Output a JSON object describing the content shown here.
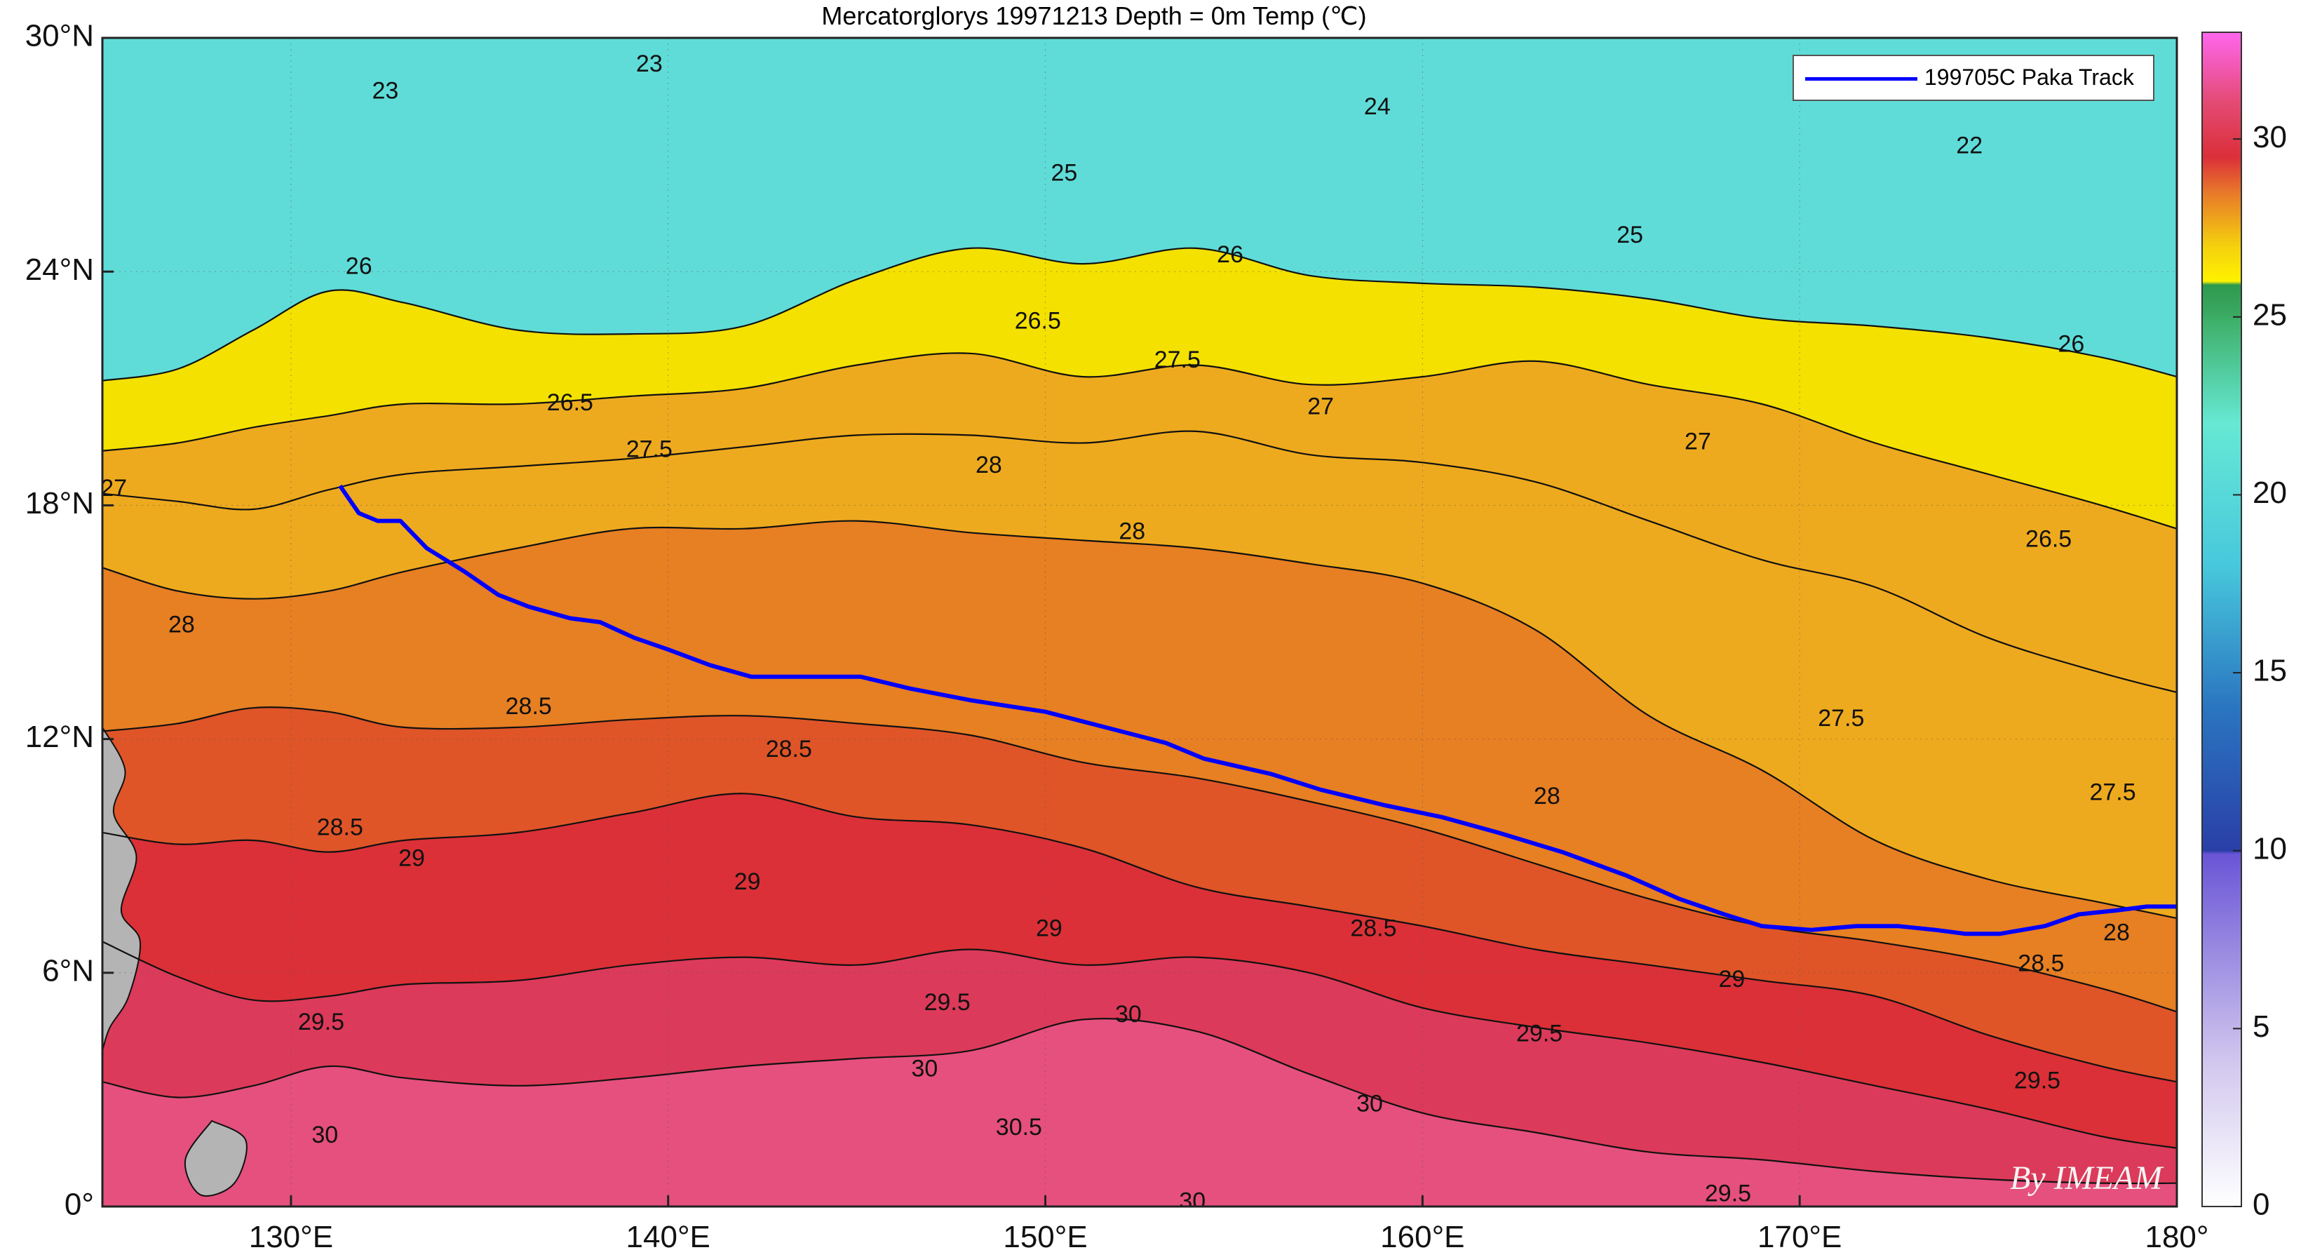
{
  "title": "Mercatorglorys 19971213 Depth = 0m Temp (℃)",
  "map": {
    "lon_range": [
      125,
      180
    ],
    "lat_range": [
      0,
      30
    ],
    "x_ticks": [
      {
        "lon": 130,
        "label": "130°E"
      },
      {
        "lon": 140,
        "label": "140°E"
      },
      {
        "lon": 150,
        "label": "150°E"
      },
      {
        "lon": 160,
        "label": "160°E"
      },
      {
        "lon": 170,
        "label": "170°E"
      },
      {
        "lon": 180,
        "label": "180°"
      }
    ],
    "y_ticks": [
      {
        "lat": 0,
        "label": "0°"
      },
      {
        "lat": 6,
        "label": "6°N"
      },
      {
        "lat": 12,
        "label": "12°N"
      },
      {
        "lat": 18,
        "label": "18°N"
      },
      {
        "lat": 24,
        "label": "24°N"
      },
      {
        "lat": 30,
        "label": "30°N"
      }
    ],
    "grid": true,
    "land_color": "#b4b4b4",
    "temperature_bands": [
      {
        "min": 0,
        "max": 21,
        "color": "#5fdcd8"
      },
      {
        "min": 21,
        "max": 25,
        "color": "#55d3ae"
      },
      {
        "min": 25,
        "max": 26,
        "color": "#3ba866"
      },
      {
        "min": 26,
        "max": 27,
        "color": "#f4e100"
      },
      {
        "min": 27,
        "max": 28,
        "color": "#eeaa1e"
      },
      {
        "min": 28,
        "max": 28.5,
        "color": "#e77f23"
      },
      {
        "min": 28.5,
        "max": 29,
        "color": "#df5528"
      },
      {
        "min": 29,
        "max": 29.5,
        "color": "#db3037"
      },
      {
        "min": 29.5,
        "max": 30,
        "color": "#dc3a5a"
      },
      {
        "min": 30,
        "max": 32,
        "color": "#e5507e"
      }
    ],
    "isotherms": [
      {
        "value": 26,
        "points": [
          [
            125,
            21.2
          ],
          [
            127,
            21.5
          ],
          [
            129,
            22.5
          ],
          [
            131,
            23.5
          ],
          [
            133,
            23.2
          ],
          [
            136,
            22.5
          ],
          [
            139,
            22.4
          ],
          [
            142,
            22.6
          ],
          [
            145,
            23.8
          ],
          [
            148,
            24.6
          ],
          [
            151,
            24.2
          ],
          [
            154,
            24.6
          ],
          [
            157,
            23.9
          ],
          [
            160,
            23.7
          ],
          [
            163,
            23.6
          ],
          [
            166,
            23.3
          ],
          [
            169,
            22.8
          ],
          [
            172,
            22.6
          ],
          [
            175,
            22.3
          ],
          [
            178,
            21.8
          ],
          [
            180,
            21.3
          ]
        ]
      },
      {
        "value": 27,
        "points": [
          [
            125,
            19.4
          ],
          [
            127,
            19.6
          ],
          [
            129,
            20
          ],
          [
            131,
            20.3
          ],
          [
            133,
            20.6
          ],
          [
            136,
            20.6
          ],
          [
            139,
            20.8
          ],
          [
            142,
            21
          ],
          [
            145,
            21.6
          ],
          [
            148,
            21.9
          ],
          [
            151,
            21.3
          ],
          [
            154,
            21.6
          ],
          [
            157,
            21.1
          ],
          [
            160,
            21.3
          ],
          [
            163,
            21.7
          ],
          [
            166,
            21.1
          ],
          [
            169,
            20.6
          ],
          [
            172,
            19.6
          ],
          [
            175,
            18.8
          ],
          [
            178,
            18
          ],
          [
            180,
            17.4
          ]
        ]
      },
      {
        "value": 27.5,
        "points": [
          [
            125,
            18.3
          ],
          [
            127,
            18.1
          ],
          [
            129,
            17.9
          ],
          [
            131,
            18.4
          ],
          [
            133,
            18.8
          ],
          [
            136,
            19
          ],
          [
            139,
            19.2
          ],
          [
            142,
            19.5
          ],
          [
            145,
            19.8
          ],
          [
            148,
            19.8
          ],
          [
            151,
            19.6
          ],
          [
            154,
            19.9
          ],
          [
            157,
            19.3
          ],
          [
            160,
            19.1
          ],
          [
            163,
            18.6
          ],
          [
            166,
            17.6
          ],
          [
            169,
            16.6
          ],
          [
            172,
            15.9
          ],
          [
            175,
            14.6
          ],
          [
            178,
            13.7
          ],
          [
            180,
            13.2
          ]
        ]
      },
      {
        "value": 28,
        "points": [
          [
            125,
            16.4
          ],
          [
            127,
            15.8
          ],
          [
            129,
            15.6
          ],
          [
            131,
            15.8
          ],
          [
            133,
            16.3
          ],
          [
            136,
            16.9
          ],
          [
            139,
            17.4
          ],
          [
            142,
            17.4
          ],
          [
            145,
            17.6
          ],
          [
            148,
            17.3
          ],
          [
            151,
            17.1
          ],
          [
            154,
            16.9
          ],
          [
            157,
            16.5
          ],
          [
            160,
            16
          ],
          [
            163,
            14.8
          ],
          [
            166,
            12.6
          ],
          [
            169,
            11.2
          ],
          [
            172,
            9.4
          ],
          [
            175,
            8.4
          ],
          [
            178,
            7.8
          ],
          [
            180,
            7.4
          ]
        ]
      },
      {
        "value": 28.5,
        "points": [
          [
            125,
            12.2
          ],
          [
            127,
            12.4
          ],
          [
            129,
            12.8
          ],
          [
            131,
            12.7
          ],
          [
            133,
            12.3
          ],
          [
            136,
            12.3
          ],
          [
            139,
            12.5
          ],
          [
            142,
            12.6
          ],
          [
            145,
            12.4
          ],
          [
            148,
            12.1
          ],
          [
            151,
            11.4
          ],
          [
            154,
            11
          ],
          [
            157,
            10.4
          ],
          [
            160,
            9.7
          ],
          [
            163,
            8.8
          ],
          [
            166,
            7.9
          ],
          [
            169,
            7.2
          ],
          [
            172,
            6.8
          ],
          [
            175,
            6.3
          ],
          [
            178,
            5.6
          ],
          [
            180,
            5
          ]
        ]
      },
      {
        "value": 29,
        "points": [
          [
            125,
            9.6
          ],
          [
            127,
            9.3
          ],
          [
            129,
            9.4
          ],
          [
            131,
            9.1
          ],
          [
            133,
            9.4
          ],
          [
            136,
            9.6
          ],
          [
            139,
            10.1
          ],
          [
            142,
            10.6
          ],
          [
            145,
            10
          ],
          [
            148,
            9.8
          ],
          [
            151,
            9.2
          ],
          [
            154,
            8.2
          ],
          [
            157,
            7.7
          ],
          [
            160,
            7.2
          ],
          [
            163,
            6.6
          ],
          [
            166,
            6.2
          ],
          [
            169,
            5.8
          ],
          [
            172,
            5.4
          ],
          [
            175,
            4.4
          ],
          [
            178,
            3.6
          ],
          [
            180,
            3.2
          ]
        ]
      },
      {
        "value": 29.5,
        "points": [
          [
            125,
            6.8
          ],
          [
            127,
            5.9
          ],
          [
            129,
            5.3
          ],
          [
            131,
            5.4
          ],
          [
            133,
            5.7
          ],
          [
            136,
            5.8
          ],
          [
            139,
            6.2
          ],
          [
            142,
            6.4
          ],
          [
            145,
            6.2
          ],
          [
            148,
            6.6
          ],
          [
            151,
            6.2
          ],
          [
            154,
            6.4
          ],
          [
            157,
            6
          ],
          [
            160,
            5.1
          ],
          [
            163,
            4.6
          ],
          [
            166,
            4.2
          ],
          [
            169,
            3.7
          ],
          [
            172,
            3.1
          ],
          [
            175,
            2.5
          ],
          [
            178,
            1.8
          ],
          [
            180,
            1.5
          ]
        ]
      },
      {
        "value": 30,
        "points": [
          [
            125,
            3.2
          ],
          [
            127,
            2.8
          ],
          [
            129,
            3.1
          ],
          [
            131,
            3.6
          ],
          [
            133,
            3.3
          ],
          [
            136,
            3.1
          ],
          [
            139,
            3.3
          ],
          [
            142,
            3.6
          ],
          [
            145,
            3.8
          ],
          [
            148,
            4
          ],
          [
            151,
            4.8
          ],
          [
            154,
            4.5
          ],
          [
            157,
            3.4
          ],
          [
            160,
            2.4
          ],
          [
            163,
            1.9
          ],
          [
            166,
            1.4
          ],
          [
            169,
            1.2
          ],
          [
            172,
            0.9
          ],
          [
            175,
            0.7
          ],
          [
            178,
            0.6
          ],
          [
            180,
            0.6
          ]
        ]
      }
    ],
    "contour_labels": [
      {
        "text": "23",
        "lon": 132.5,
        "lat": 28.6
      },
      {
        "text": "23",
        "lon": 139.5,
        "lat": 29.3
      },
      {
        "text": "24",
        "lon": 158.8,
        "lat": 28.2
      },
      {
        "text": "22",
        "lon": 174.5,
        "lat": 27.2
      },
      {
        "text": "25",
        "lon": 150.5,
        "lat": 26.5
      },
      {
        "text": "25",
        "lon": 165.5,
        "lat": 24.9
      },
      {
        "text": "26",
        "lon": 131.8,
        "lat": 24.1
      },
      {
        "text": "26",
        "lon": 154.9,
        "lat": 24.4
      },
      {
        "text": "26",
        "lon": 177.2,
        "lat": 22.1
      },
      {
        "text": "26.5",
        "lon": 149.8,
        "lat": 22.7
      },
      {
        "text": "26.5",
        "lon": 137.4,
        "lat": 20.6
      },
      {
        "text": "26.5",
        "lon": 176.6,
        "lat": 17.1
      },
      {
        "text": "27",
        "lon": 125.3,
        "lat": 18.4
      },
      {
        "text": "27",
        "lon": 157.3,
        "lat": 20.5
      },
      {
        "text": "27",
        "lon": 167.3,
        "lat": 19.6
      },
      {
        "text": "27.5",
        "lon": 153.5,
        "lat": 21.7
      },
      {
        "text": "27.5",
        "lon": 139.5,
        "lat": 19.4
      },
      {
        "text": "27.5",
        "lon": 171.1,
        "lat": 12.5
      },
      {
        "text": "27.5",
        "lon": 178.3,
        "lat": 10.6
      },
      {
        "text": "28",
        "lon": 148.5,
        "lat": 19
      },
      {
        "text": "28",
        "lon": 152.3,
        "lat": 17.3
      },
      {
        "text": "28",
        "lon": 127.1,
        "lat": 14.9
      },
      {
        "text": "28",
        "lon": 163.3,
        "lat": 10.5
      },
      {
        "text": "28",
        "lon": 178.4,
        "lat": 7
      },
      {
        "text": "28.5",
        "lon": 136.3,
        "lat": 12.8
      },
      {
        "text": "28.5",
        "lon": 143.2,
        "lat": 11.7
      },
      {
        "text": "28.5",
        "lon": 131.3,
        "lat": 9.7
      },
      {
        "text": "28.5",
        "lon": 158.7,
        "lat": 7.1
      },
      {
        "text": "28.5",
        "lon": 176.4,
        "lat": 6.2
      },
      {
        "text": "29",
        "lon": 142.1,
        "lat": 8.3
      },
      {
        "text": "29",
        "lon": 150.1,
        "lat": 7.1
      },
      {
        "text": "29",
        "lon": 168.2,
        "lat": 5.8
      },
      {
        "text": "29",
        "lon": 133.2,
        "lat": 8.9
      },
      {
        "text": "29.5",
        "lon": 147.4,
        "lat": 5.2
      },
      {
        "text": "29.5",
        "lon": 130.8,
        "lat": 4.7
      },
      {
        "text": "29.5",
        "lon": 163.1,
        "lat": 4.4
      },
      {
        "text": "29.5",
        "lon": 176.3,
        "lat": 3.2
      },
      {
        "text": "30",
        "lon": 152.2,
        "lat": 4.9
      },
      {
        "text": "30",
        "lon": 146.8,
        "lat": 3.5
      },
      {
        "text": "30",
        "lon": 158.6,
        "lat": 2.6
      },
      {
        "text": "30",
        "lon": 130.9,
        "lat": 1.8
      },
      {
        "text": "30.5",
        "lon": 149.3,
        "lat": 2
      },
      {
        "text": "30",
        "lon": 153.9,
        "lat": 0.1
      },
      {
        "text": "29.5",
        "lon": 168.1,
        "lat": 0.3
      }
    ],
    "typhoon_track": {
      "name": "199705C Paka Track",
      "color": "#0000ff",
      "points": [
        [
          131.3,
          18.5
        ],
        [
          131.8,
          17.8
        ],
        [
          132.3,
          17.6
        ],
        [
          132.9,
          17.6
        ],
        [
          133.6,
          16.9
        ],
        [
          134.6,
          16.3
        ],
        [
          135.5,
          15.7
        ],
        [
          136.3,
          15.4
        ],
        [
          137.4,
          15.1
        ],
        [
          138.2,
          15
        ],
        [
          139.1,
          14.6
        ],
        [
          140,
          14.3
        ],
        [
          141.1,
          13.9
        ],
        [
          142.2,
          13.6
        ],
        [
          143.4,
          13.6
        ],
        [
          144.5,
          13.6
        ],
        [
          145.1,
          13.6
        ],
        [
          146.4,
          13.3
        ],
        [
          148,
          13
        ],
        [
          150,
          12.7
        ],
        [
          152,
          12.2
        ],
        [
          153.2,
          11.9
        ],
        [
          154.2,
          11.5
        ],
        [
          156,
          11.1
        ],
        [
          157.3,
          10.7
        ],
        [
          159,
          10.3
        ],
        [
          160.5,
          10
        ],
        [
          162,
          9.6
        ],
        [
          163.7,
          9.1
        ],
        [
          165.4,
          8.5
        ],
        [
          166.8,
          7.9
        ],
        [
          168,
          7.5
        ],
        [
          169,
          7.2
        ],
        [
          170.3,
          7.1
        ],
        [
          171.5,
          7.2
        ],
        [
          172.6,
          7.2
        ],
        [
          173.6,
          7.1
        ],
        [
          174.4,
          7
        ],
        [
          175.3,
          7
        ],
        [
          176.5,
          7.2
        ],
        [
          177.4,
          7.5
        ],
        [
          178.4,
          7.6
        ],
        [
          179.2,
          7.7
        ],
        [
          180,
          7.7
        ]
      ]
    }
  },
  "legend": {
    "entries": [
      {
        "label": "199705C Paka Track",
        "color": "#0000ff"
      }
    ],
    "placement": "top-right"
  },
  "colorbar": {
    "min": 0,
    "max": 33,
    "tick_labels": [
      "0",
      "5",
      "10",
      "15",
      "20",
      "25",
      "30"
    ],
    "tick_values": [
      0,
      5,
      10,
      15,
      20,
      25,
      30
    ],
    "stops": [
      {
        "value": 0,
        "color": "#ffffff"
      },
      {
        "value": 4,
        "color": "#d2c8ee"
      },
      {
        "value": 9.9,
        "color": "#6a55d6"
      },
      {
        "value": 10,
        "color": "#2a3fa8"
      },
      {
        "value": 14,
        "color": "#2a75c0"
      },
      {
        "value": 18,
        "color": "#48c8dc"
      },
      {
        "value": 22,
        "color": "#66e8d4"
      },
      {
        "value": 24.9,
        "color": "#3fb06a"
      },
      {
        "value": 25.1,
        "color": "#3aa860"
      },
      {
        "value": 25.9,
        "color": "#2e9a4e"
      },
      {
        "value": 26,
        "color": "#fff200"
      },
      {
        "value": 27,
        "color": "#f4d00e"
      },
      {
        "value": 28.5,
        "color": "#e8782a"
      },
      {
        "value": 29.5,
        "color": "#db2f3a"
      },
      {
        "value": 31,
        "color": "#e34a72"
      },
      {
        "value": 33,
        "color": "#ff66ee"
      }
    ]
  },
  "watermark": "By IMEAM"
}
